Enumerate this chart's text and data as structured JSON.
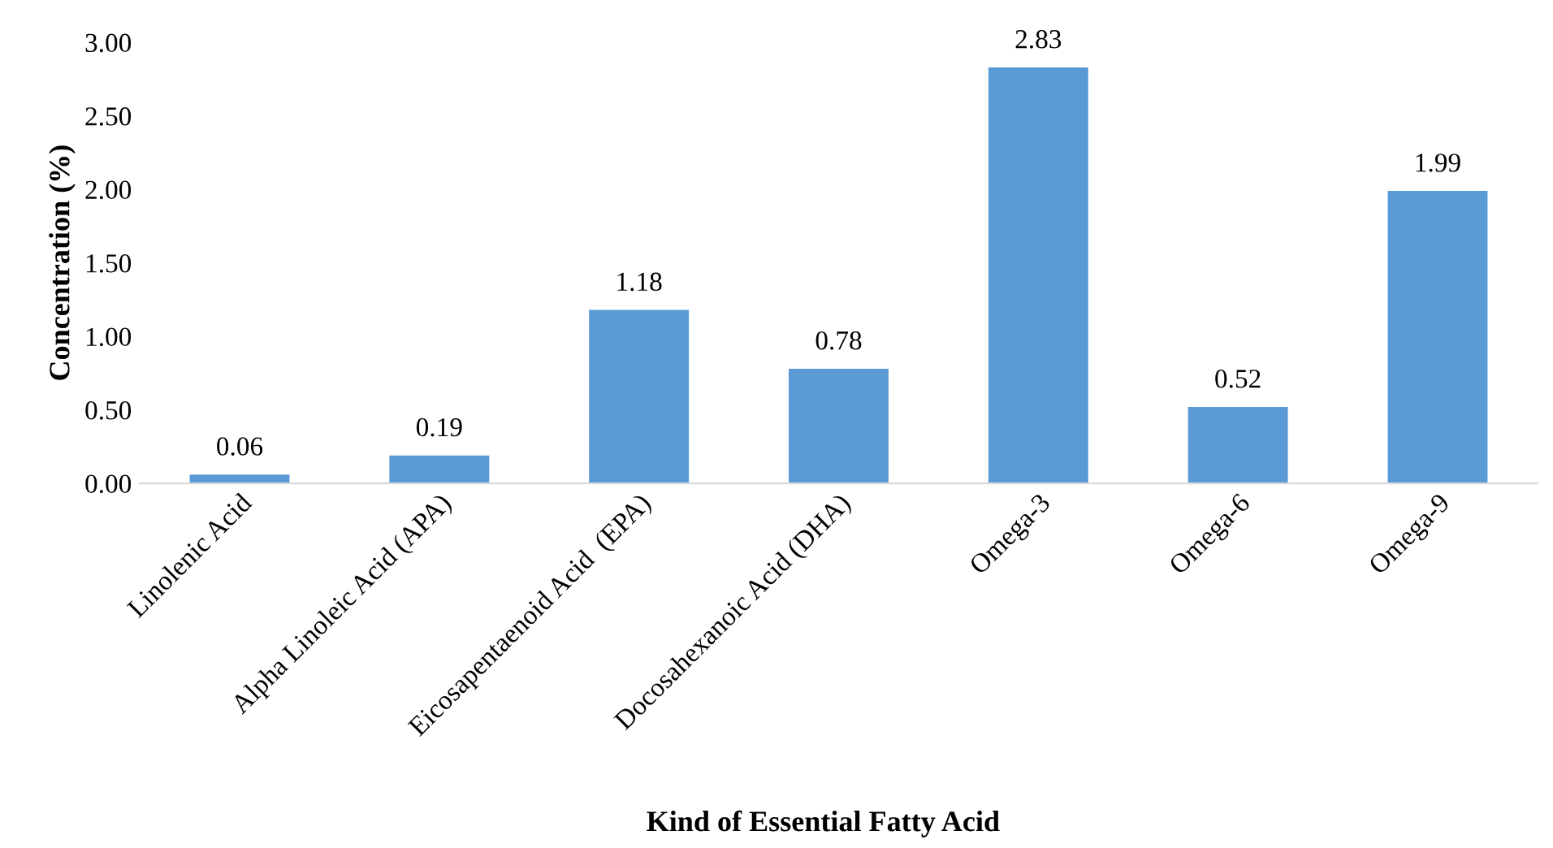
{
  "chart_data": {
    "type": "bar",
    "xlabel": "Kind of Essential Fatty Acid",
    "ylabel": "Concentration (%)",
    "categories": [
      "Linolenic Acid",
      "Alpha Linoleic Acid (APA)",
      "Eicosapentaenoid Acid  (EPA)",
      "Docosahexanoic Acid (DHA)",
      "Omega-3",
      "Omega-6",
      "Omega-9"
    ],
    "values": [
      0.06,
      0.19,
      1.18,
      0.78,
      2.83,
      0.52,
      1.99
    ],
    "value_labels": [
      "0.06",
      "0.19",
      "1.18",
      "0.78",
      "2.83",
      "0.52",
      "1.99"
    ],
    "color": "#5b9bd5",
    "ylim": [
      0,
      3
    ],
    "yticks": [
      {
        "value": 0,
        "label": "0.00"
      },
      {
        "value": 0.5,
        "label": "0.50"
      },
      {
        "value": 1,
        "label": "1.00"
      },
      {
        "value": 1.5,
        "label": "1.50"
      },
      {
        "value": 2,
        "label": "2.00"
      },
      {
        "value": 2.5,
        "label": "2.50"
      },
      {
        "value": 3,
        "label": "3.00"
      }
    ],
    "grid": false,
    "legend": false
  }
}
